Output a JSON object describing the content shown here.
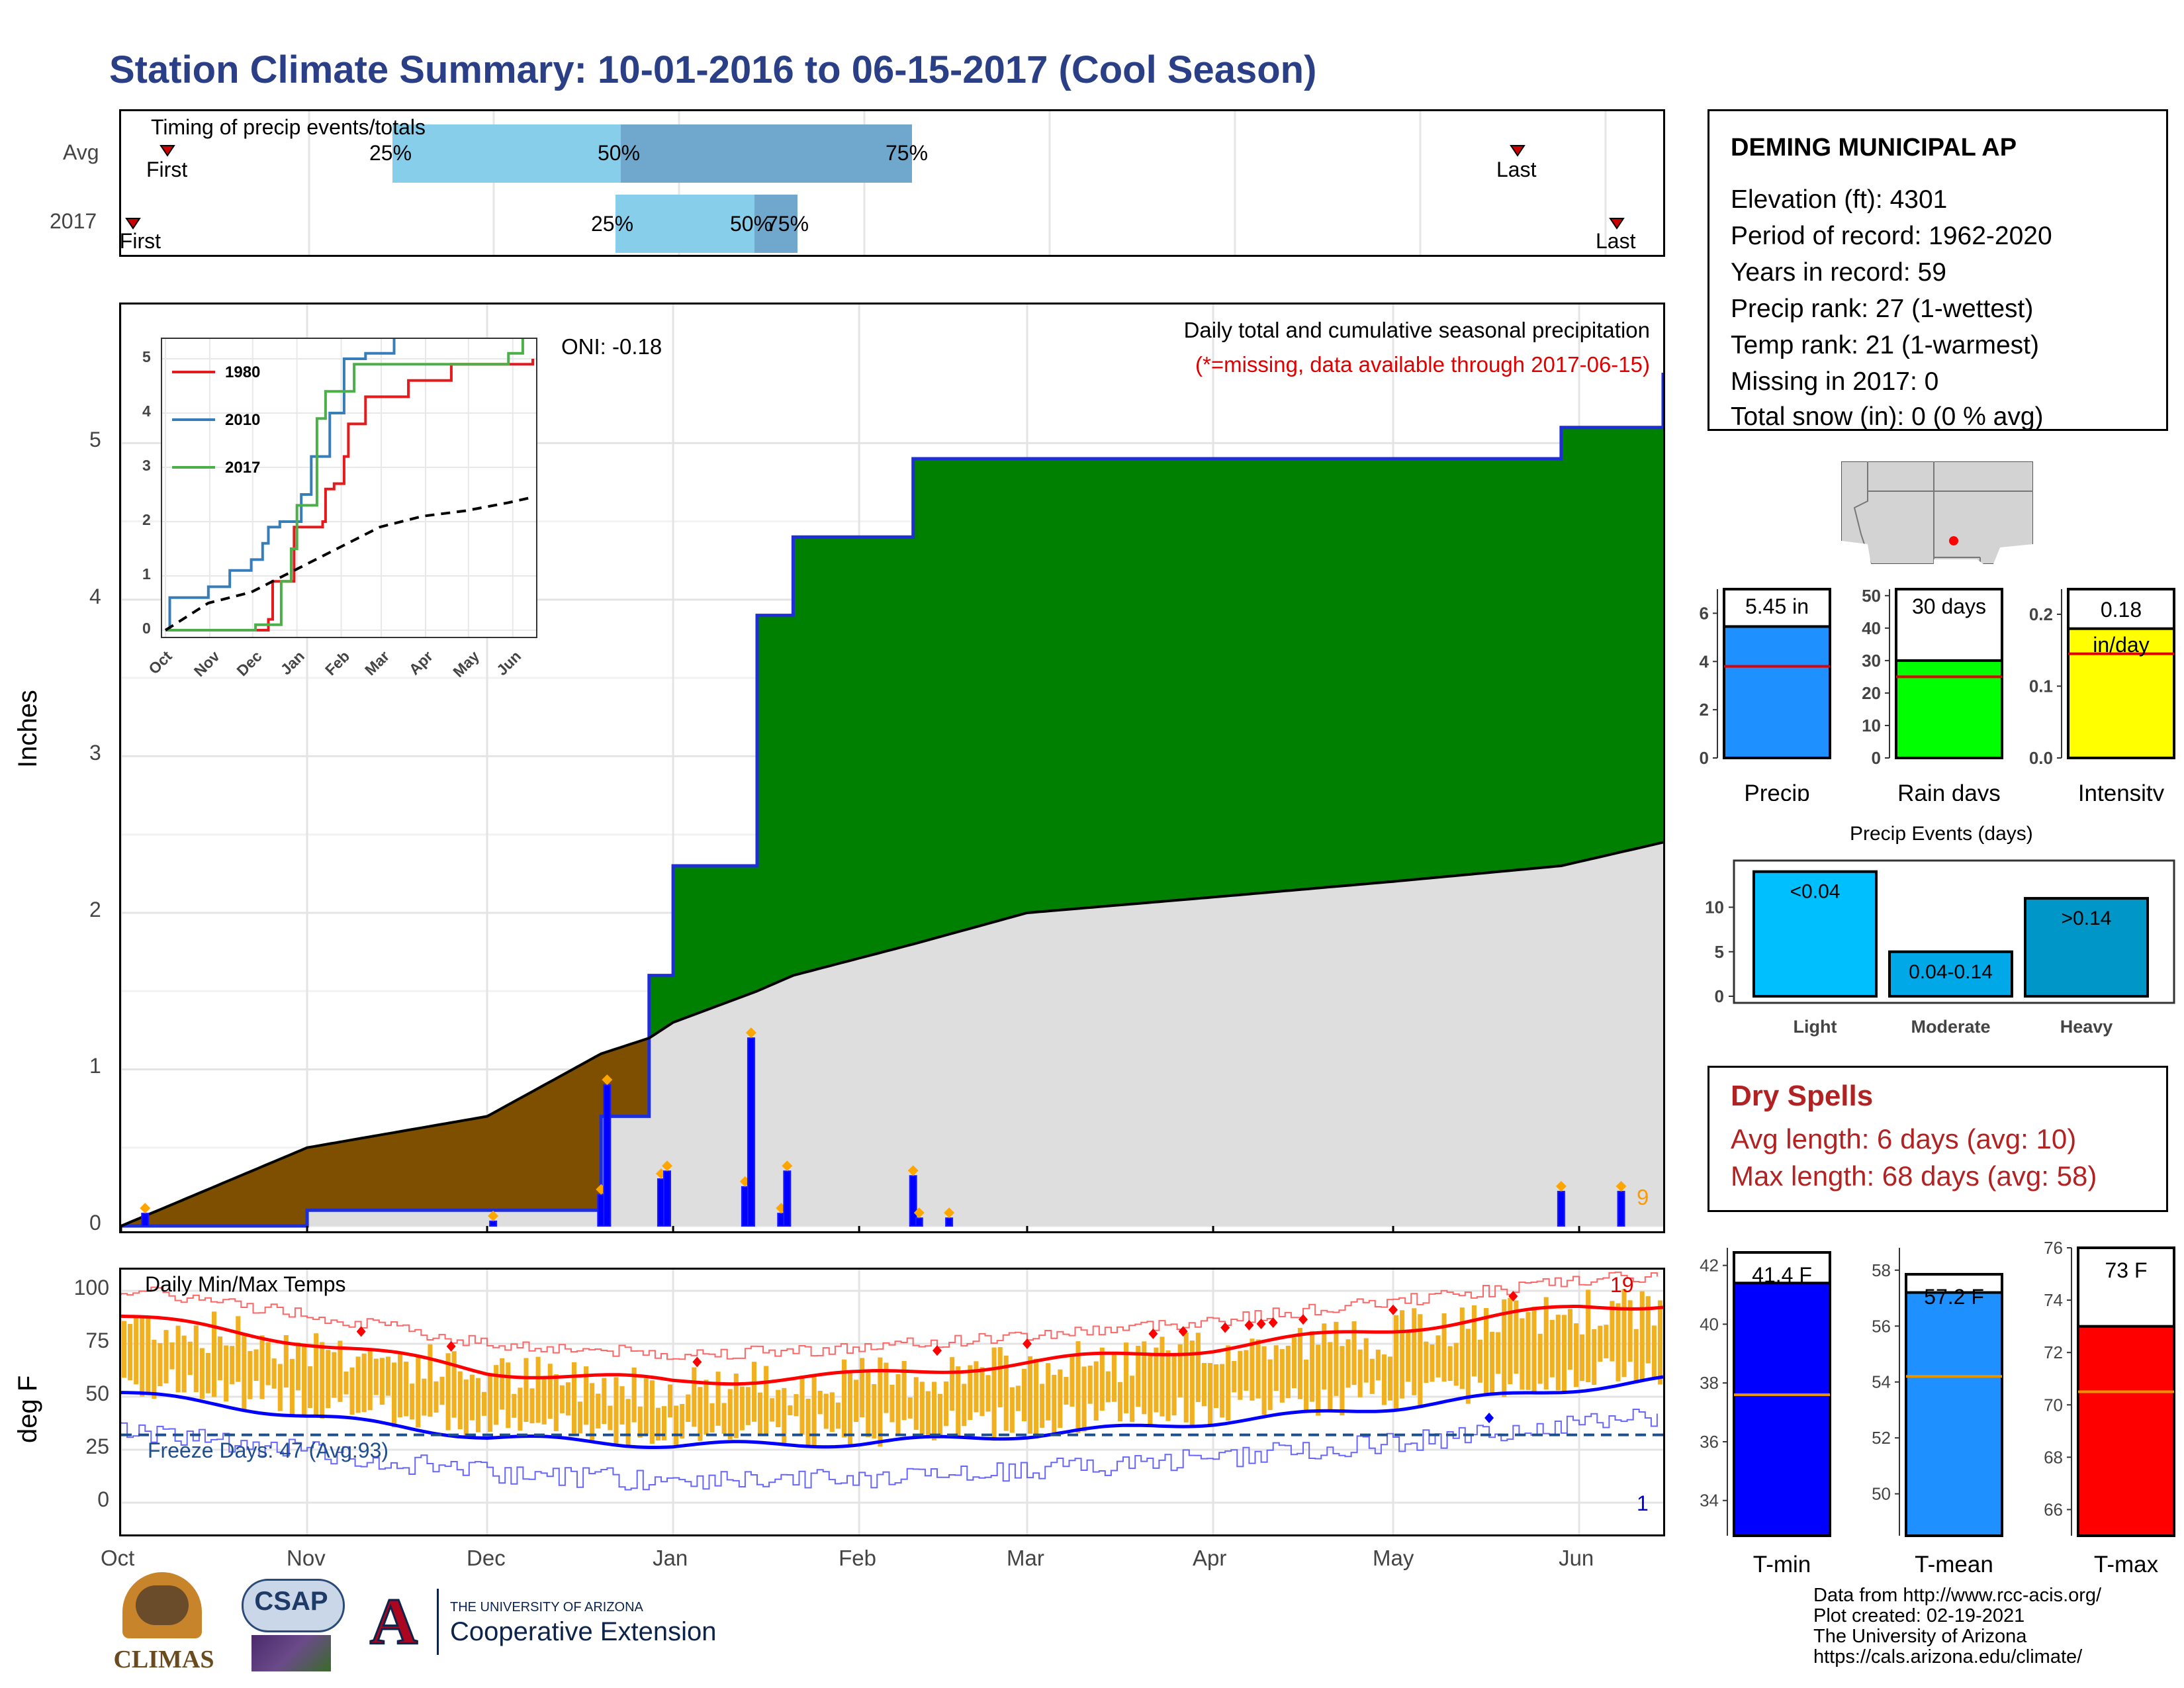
{
  "title": "Station Climate Summary: 10-01-2016 to 06-15-2017 (Cool Season)",
  "timing": {
    "label": "Timing of precip events/totals",
    "rows": [
      {
        "name": "Avg",
        "first_label": "First",
        "last_label": "Last",
        "p25": "25%",
        "p50": "50%",
        "p75": "75%"
      },
      {
        "name": "2017",
        "first_label": "First",
        "last_label": "Last",
        "p25": "25%",
        "p50": "50%",
        "p75": "75%"
      }
    ]
  },
  "station": {
    "name": "DEMING MUNICIPAL AP",
    "lines": [
      "Elevation (ft): 4301",
      "Period of record: 1962-2020",
      "Years in record: 59",
      "Precip rank: 27 (1-wettest)",
      "Temp rank: 21 (1-warmest)",
      "Missing in 2017: 0",
      "Total snow (in): 0 (0 % avg)"
    ]
  },
  "precip_panel": {
    "ylabel": "Inches",
    "oni": "ONI: -0.18",
    "caption": "Daily total and cumulative seasonal precipitation",
    "missing_note": "(*=missing, data available through 2017-06-15)",
    "corner_count": "9",
    "yticks": [
      "0",
      "1",
      "2",
      "3",
      "4",
      "5"
    ],
    "months": [
      "Oct",
      "Nov",
      "Dec",
      "Jan",
      "Feb",
      "Mar",
      "Apr",
      "May",
      "Jun"
    ]
  },
  "inset": {
    "yticks": [
      "0",
      "1",
      "2",
      "3",
      "4",
      "5"
    ],
    "months": [
      "Oct",
      "Nov",
      "Dec",
      "Jan",
      "Feb",
      "Mar",
      "Apr",
      "May",
      "Jun"
    ],
    "legend": [
      {
        "name": "1980",
        "color": "#e41a1c"
      },
      {
        "name": "2010",
        "color": "#377eb8"
      },
      {
        "name": "2017",
        "color": "#4daf4a"
      }
    ]
  },
  "temp_panel": {
    "ylabel": "deg F",
    "caption": "Daily Min/Max Temps",
    "freeze": "Freeze Days: 47 (Avg:93)",
    "max_count": "19",
    "min_count": "1",
    "yticks": [
      "0",
      "25",
      "50",
      "75",
      "100"
    ],
    "months": [
      "Oct",
      "Nov",
      "Dec",
      "Jan",
      "Feb",
      "Mar",
      "Apr",
      "May",
      "Jun"
    ]
  },
  "summary_bars": [
    {
      "label": "Precip",
      "value_text": "5.45 in",
      "color": "#1e90ff",
      "ticks": [
        "0",
        "2",
        "4",
        "6"
      ]
    },
    {
      "label": "Rain days",
      "value_text": "30 days",
      "color": "#00ff00",
      "ticks": [
        "0",
        "10",
        "20",
        "30",
        "40",
        "50"
      ]
    },
    {
      "label": "Intensity",
      "value_text": "0.18 in/day",
      "color": "#ffff00",
      "ticks": [
        "0.0",
        "0.1",
        "0.2"
      ]
    }
  ],
  "events": {
    "title": "Precip Events (days)",
    "ticks": [
      "0",
      "5",
      "10"
    ],
    "bars": [
      {
        "label": "Light",
        "value_text": "<0.04",
        "color": "#00bfff"
      },
      {
        "label": "Moderate",
        "value_text": "0.04-0.14",
        "color": "#00a8e8"
      },
      {
        "label": "Heavy",
        "value_text": ">0.14",
        "color": "#0096c7"
      }
    ]
  },
  "dry_spells": {
    "title": "Dry Spells",
    "avg": "Avg length: 6 days (avg: 10)",
    "max": "Max length: 68 days (avg: 58)"
  },
  "temp_bars": [
    {
      "label": "T-min",
      "value_text": "41.4 F",
      "color": "#0000ff",
      "ticks": [
        "34",
        "36",
        "38",
        "40",
        "42"
      ]
    },
    {
      "label": "T-mean",
      "value_text": "57.2 F",
      "color": "#1e90ff",
      "ticks": [
        "50",
        "52",
        "54",
        "56",
        "58"
      ]
    },
    {
      "label": "T-max",
      "value_text": "73 F",
      "color": "#ff0000",
      "ticks": [
        "66",
        "68",
        "70",
        "72",
        "74",
        "76"
      ]
    }
  ],
  "credits": [
    "Data from http://www.rcc-acis.org/",
    "Plot created: 02-19-2021",
    "The University of Arizona",
    "https://cals.arizona.edu/climate/"
  ],
  "logos": {
    "climas": "CLIMAS",
    "csap": "CSAP",
    "ua_small": "THE UNIVERSITY OF ARIZONA",
    "ua_big": "Cooperative Extension"
  },
  "chart_data": [
    {
      "type": "area",
      "title": "Daily total and cumulative seasonal precipitation",
      "ylabel": "Inches",
      "ylim": [
        0,
        5.9
      ],
      "x": [
        "2016-10-01",
        "2016-11-01",
        "2016-12-01",
        "2016-12-20",
        "2016-12-28",
        "2017-01-01",
        "2017-01-15",
        "2017-01-21",
        "2017-02-10",
        "2017-03-01",
        "2017-04-01",
        "2017-05-01",
        "2017-05-29",
        "2017-06-15"
      ],
      "series": [
        {
          "values": [
            0.0,
            0.1,
            0.1,
            0.7,
            1.6,
            2.3,
            3.9,
            4.4,
            4.9,
            4.9,
            4.9,
            4.9,
            5.1,
            5.45
          ]
        },
        {
          "values": [
            0.0,
            0.5,
            0.7,
            1.1,
            1.2,
            1.3,
            1.5,
            1.6,
            1.8,
            2.0,
            2.1,
            2.2,
            2.3,
            2.45
          ]
        }
      ],
      "daily_bars": [
        {
          "x": "2016-10-05",
          "y": 0.08
        },
        {
          "x": "2016-12-02",
          "y": 0.03
        },
        {
          "x": "2016-12-20",
          "y": 0.2
        },
        {
          "x": "2016-12-21",
          "y": 0.9
        },
        {
          "x": "2016-12-30",
          "y": 0.3
        },
        {
          "x": "2016-12-31",
          "y": 0.35
        },
        {
          "x": "2017-01-13",
          "y": 0.25
        },
        {
          "x": "2017-01-14",
          "y": 1.2
        },
        {
          "x": "2017-01-19",
          "y": 0.08
        },
        {
          "x": "2017-01-20",
          "y": 0.35
        },
        {
          "x": "2017-02-10",
          "y": 0.32
        },
        {
          "x": "2017-02-11",
          "y": 0.05
        },
        {
          "x": "2017-02-16",
          "y": 0.05
        },
        {
          "x": "2017-05-29",
          "y": 0.22
        },
        {
          "x": "2017-06-08",
          "y": 0.22
        }
      ]
    },
    {
      "type": "line",
      "title": "Daily Min/Max Temps",
      "ylabel": "deg F",
      "ylim": [
        -15,
        110
      ],
      "x": [
        "2016-10-01",
        "2016-11-01",
        "2016-12-01",
        "2017-01-01",
        "2017-02-01",
        "2017-03-01",
        "2017-04-01",
        "2017-05-01",
        "2017-06-01",
        "2017-06-15"
      ],
      "series": [
        {
          "values": [
            88,
            76,
            62,
            57,
            60,
            66,
            73,
            82,
            92,
            94
          ]
        },
        {
          "values": [
            52,
            41,
            31,
            27,
            28,
            32,
            38,
            45,
            54,
            58
          ]
        }
      ],
      "freeze_line": 32
    }
  ]
}
